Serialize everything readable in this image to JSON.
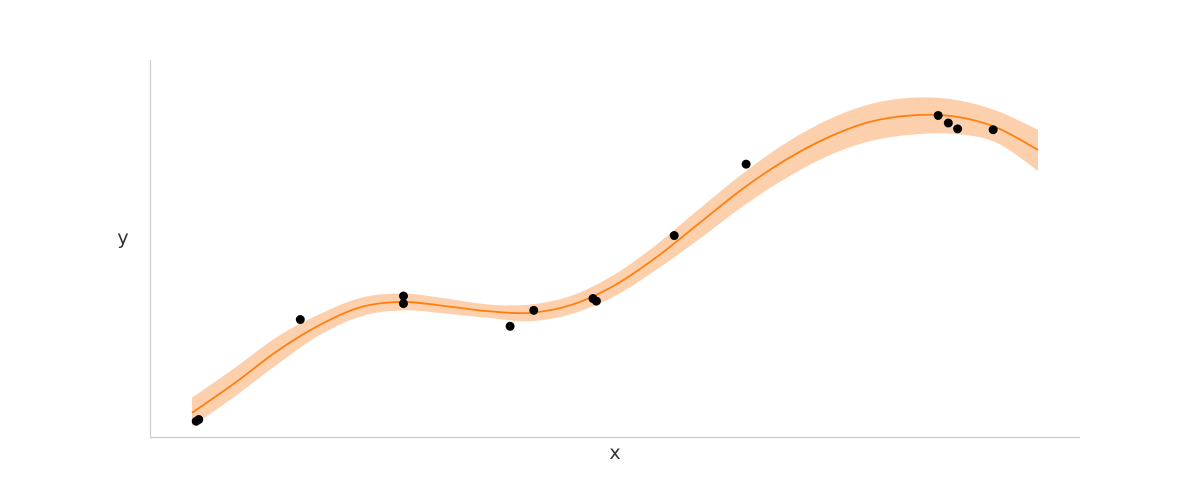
{
  "chart_data": {
    "type": "line",
    "xlabel": "x",
    "ylabel": "y",
    "xlim": [
      0,
      10
    ],
    "ylim": [
      -1.0,
      3.5
    ],
    "grid": false,
    "colors": {
      "line": "#ff7f0e",
      "band": "#fdc89f",
      "points": "#000000",
      "axis": "#cccccc"
    },
    "series": [
      {
        "type": "line",
        "x": [
          0.0,
          0.5,
          1.0,
          1.5,
          2.0,
          2.5,
          3.0,
          3.5,
          4.0,
          4.5,
          5.0,
          5.5,
          6.0,
          6.5,
          7.0,
          7.5,
          8.0,
          8.5,
          9.0,
          9.5,
          10.0
        ],
        "y": [
          -0.7,
          -0.35,
          0.03,
          0.34,
          0.56,
          0.62,
          0.57,
          0.51,
          0.49,
          0.59,
          0.82,
          1.16,
          1.56,
          1.96,
          2.3,
          2.57,
          2.76,
          2.84,
          2.83,
          2.7,
          2.43
        ],
        "lower": [
          -0.86,
          -0.51,
          -0.13,
          0.22,
          0.45,
          0.52,
          0.48,
          0.43,
          0.39,
          0.48,
          0.69,
          1.01,
          1.37,
          1.75,
          2.08,
          2.35,
          2.53,
          2.61,
          2.62,
          2.52,
          2.18
        ],
        "upper": [
          -0.52,
          -0.17,
          0.2,
          0.47,
          0.67,
          0.72,
          0.66,
          0.59,
          0.59,
          0.7,
          0.95,
          1.31,
          1.73,
          2.14,
          2.5,
          2.78,
          2.97,
          3.05,
          3.03,
          2.9,
          2.67
        ]
      },
      {
        "type": "scatter",
        "x": [
          0.05,
          0.08,
          1.28,
          2.5,
          2.5,
          3.76,
          4.04,
          4.74,
          4.78,
          5.7,
          6.55,
          8.82,
          8.94,
          9.05,
          9.47
        ],
        "y": [
          -0.8,
          -0.78,
          0.41,
          0.6,
          0.69,
          0.33,
          0.52,
          0.66,
          0.63,
          1.41,
          2.26,
          2.84,
          2.75,
          2.68,
          2.67
        ]
      }
    ]
  }
}
